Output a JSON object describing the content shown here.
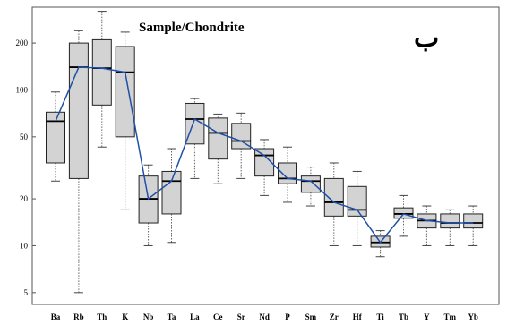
{
  "chart_data": {
    "type": "box",
    "title": "Sample/Chondrite",
    "panel_label": "ب",
    "y_scale": "log",
    "ylim": [
      4.2,
      340
    ],
    "y_ticks": [
      5,
      10,
      20,
      50,
      100,
      200
    ],
    "categories": [
      "Ba",
      "Rb",
      "Th",
      "K",
      "Nb",
      "Ta",
      "La",
      "Ce",
      "Sr",
      "Nd",
      "P",
      "Sm",
      "Zr",
      "Hf",
      "Ti",
      "Tb",
      "Y",
      "Tm",
      "Yb"
    ],
    "boxes": [
      {
        "min": 26,
        "q1": 34,
        "median": 63,
        "q3": 72,
        "max": 97
      },
      {
        "min": 5,
        "q1": 27,
        "median": 140,
        "q3": 200,
        "max": 240
      },
      {
        "min": 43,
        "q1": 80,
        "median": 138,
        "q3": 210,
        "max": 320
      },
      {
        "min": 17,
        "q1": 50,
        "median": 130,
        "q3": 190,
        "max": 235
      },
      {
        "min": 10,
        "q1": 14,
        "median": 20,
        "q3": 28,
        "max": 33
      },
      {
        "min": 10.5,
        "q1": 16,
        "median": 26,
        "q3": 30,
        "max": 42
      },
      {
        "min": 27,
        "q1": 45,
        "median": 65,
        "q3": 82,
        "max": 88
      },
      {
        "min": 25,
        "q1": 36,
        "median": 53,
        "q3": 66,
        "max": 70
      },
      {
        "min": 27,
        "q1": 42,
        "median": 47,
        "q3": 61,
        "max": 71
      },
      {
        "min": 21,
        "q1": 28,
        "median": 38,
        "q3": 42,
        "max": 48
      },
      {
        "min": 19,
        "q1": 25,
        "median": 27,
        "q3": 34,
        "max": 43
      },
      {
        "min": 18,
        "q1": 22,
        "median": 26,
        "q3": 28,
        "max": 32
      },
      {
        "min": 10,
        "q1": 15.5,
        "median": 19,
        "q3": 27,
        "max": 34
      },
      {
        "min": 10,
        "q1": 15.5,
        "median": 17,
        "q3": 24,
        "max": 30
      },
      {
        "min": 8.5,
        "q1": 9.8,
        "median": 10.5,
        "q3": 11.5,
        "max": 12.5
      },
      {
        "min": 11.5,
        "q1": 15,
        "median": 16,
        "q3": 17.5,
        "max": 21
      },
      {
        "min": 10,
        "q1": 13,
        "median": 14.5,
        "q3": 16,
        "max": 18
      },
      {
        "min": 10,
        "q1": 13,
        "median": 14,
        "q3": 16,
        "max": 17
      },
      {
        "min": 10,
        "q1": 13,
        "median": 14,
        "q3": 16,
        "max": 18
      }
    ],
    "median_line_color": "#1f4fa8",
    "box_fill": "#d3d3d3"
  }
}
